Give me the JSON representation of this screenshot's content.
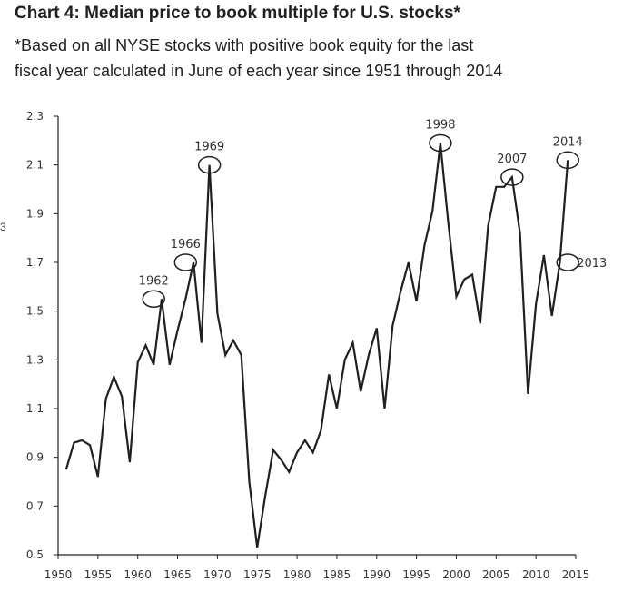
{
  "header": {
    "title": "Chart 4: Median price to book multiple for U.S. stocks*",
    "subtitle_line1": "*Based on all NYSE stocks with positive book equity for the last",
    "subtitle_line2": "fiscal year calculated in June of each year since 1951 through 2014"
  },
  "stub_text": "3",
  "colors": {
    "line": "#231f20",
    "axis": "#231f20",
    "text": "#333333"
  },
  "chart_data": {
    "type": "line",
    "title": "Chart 4: Median price to book multiple for U.S. stocks*",
    "xlabel": "",
    "ylabel": "",
    "xlim": [
      1950,
      2015
    ],
    "ylim": [
      0.5,
      2.3
    ],
    "grid": false,
    "xticks": [
      1950,
      1955,
      1960,
      1965,
      1970,
      1975,
      1980,
      1985,
      1990,
      1995,
      2000,
      2005,
      2010,
      2015
    ],
    "xtick_labels": [
      "1950",
      "1955",
      "1960",
      "1965",
      "1970",
      "1975",
      "1980",
      "1985",
      "1990",
      "1995",
      "2000",
      "2005",
      "2010",
      "2015"
    ],
    "yticks": [
      0.5,
      0.7,
      0.9,
      1.1,
      1.3,
      1.5,
      1.7,
      1.9,
      2.1,
      2.3
    ],
    "ytick_labels": [
      "0.5",
      "0.7",
      "0.9",
      "1.1",
      "1.3",
      "1.5",
      "1.7",
      "1.9",
      "2.1",
      "2.3"
    ],
    "series": [
      {
        "name": "Median price to book",
        "x": [
          1951,
          1952,
          1953,
          1954,
          1955,
          1956,
          1957,
          1958,
          1959,
          1960,
          1961,
          1962,
          1963,
          1964,
          1965,
          1966,
          1967,
          1968,
          1969,
          1970,
          1971,
          1972,
          1973,
          1974,
          1975,
          1976,
          1977,
          1978,
          1979,
          1980,
          1981,
          1982,
          1983,
          1984,
          1985,
          1986,
          1987,
          1988,
          1989,
          1990,
          1991,
          1992,
          1993,
          1994,
          1995,
          1996,
          1997,
          1998,
          1999,
          2000,
          2001,
          2002,
          2003,
          2004,
          2005,
          2006,
          2007,
          2008,
          2009,
          2010,
          2011,
          2012,
          2013,
          2014
        ],
        "values": [
          0.85,
          0.96,
          0.97,
          0.95,
          0.82,
          1.14,
          1.23,
          1.15,
          0.88,
          1.29,
          1.36,
          1.28,
          1.55,
          1.28,
          1.42,
          1.55,
          1.7,
          1.37,
          2.1,
          1.49,
          1.32,
          1.38,
          1.32,
          0.8,
          0.53,
          0.74,
          0.93,
          0.89,
          0.84,
          0.92,
          0.97,
          0.92,
          1.01,
          1.24,
          1.1,
          1.3,
          1.37,
          1.17,
          1.32,
          1.43,
          1.1,
          1.44,
          1.58,
          1.7,
          1.54,
          1.77,
          1.91,
          2.19,
          1.86,
          1.56,
          1.63,
          1.65,
          1.45,
          1.85,
          2.01,
          2.01,
          2.05,
          1.82,
          1.16,
          1.53,
          1.73,
          1.48,
          1.7,
          2.12
        ]
      }
    ],
    "annotations": [
      {
        "label": "1962",
        "x": 1962,
        "y": 1.55,
        "position": "above"
      },
      {
        "label": "1966",
        "x": 1966,
        "y": 1.7,
        "position": "above"
      },
      {
        "label": "1969",
        "x": 1969,
        "y": 2.1,
        "position": "above"
      },
      {
        "label": "1998",
        "x": 1998,
        "y": 2.19,
        "position": "above"
      },
      {
        "label": "2007",
        "x": 2007,
        "y": 2.05,
        "position": "above"
      },
      {
        "label": "2014",
        "x": 2014,
        "y": 2.12,
        "position": "above"
      },
      {
        "label": "2013",
        "x": 2014,
        "y": 1.7,
        "position": "right"
      }
    ]
  }
}
